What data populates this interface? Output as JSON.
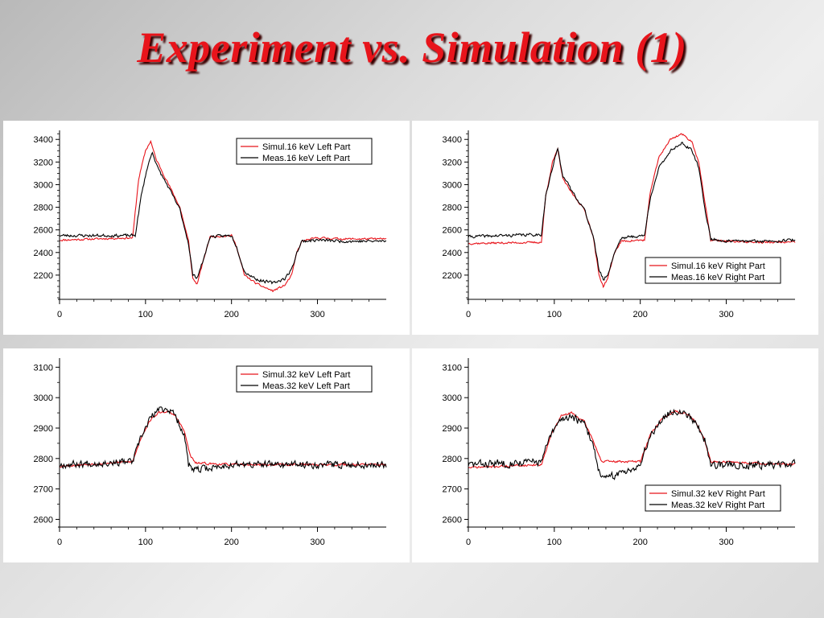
{
  "title": "Experiment vs. Simulation (1)",
  "colors": {
    "simul": "#e8141b",
    "meas": "#000000"
  },
  "chart_data": [
    {
      "type": "line",
      "xlim": [
        0,
        380
      ],
      "ylim": [
        2000,
        3480
      ],
      "xticks": [
        0,
        100,
        200,
        300
      ],
      "yticks": [
        2200,
        2400,
        2600,
        2800,
        3000,
        3200,
        3400
      ],
      "legend_position": "top-right",
      "series": [
        {
          "name": "Simul.16 keV Left Part",
          "color": "#e8141b",
          "noise": 12,
          "seed": 11,
          "x": [
            0,
            85,
            92,
            100,
            106,
            112,
            125,
            140,
            150,
            155,
            160,
            168,
            175,
            200,
            206,
            215,
            230,
            248,
            262,
            270,
            276,
            282,
            300,
            330,
            380
          ],
          "values": [
            2510,
            2530,
            3050,
            3300,
            3385,
            3230,
            3030,
            2800,
            2500,
            2170,
            2120,
            2350,
            2540,
            2550,
            2450,
            2200,
            2120,
            2060,
            2110,
            2200,
            2400,
            2500,
            2530,
            2520,
            2520
          ]
        },
        {
          "name": "Meas.16 keV Left Part",
          "color": "#000000",
          "noise": 18,
          "seed": 23,
          "x": [
            0,
            88,
            95,
            102,
            108,
            114,
            125,
            140,
            150,
            155,
            160,
            168,
            175,
            200,
            206,
            215,
            230,
            248,
            262,
            270,
            276,
            282,
            300,
            330,
            380
          ],
          "values": [
            2550,
            2550,
            2900,
            3150,
            3290,
            3150,
            3000,
            2780,
            2480,
            2200,
            2180,
            2350,
            2540,
            2550,
            2450,
            2230,
            2160,
            2130,
            2170,
            2250,
            2400,
            2500,
            2510,
            2500,
            2500
          ]
        }
      ]
    },
    {
      "type": "line",
      "xlim": [
        0,
        380
      ],
      "ylim": [
        2000,
        3480
      ],
      "xticks": [
        0,
        100,
        200,
        300
      ],
      "yticks": [
        2200,
        2400,
        2600,
        2800,
        3000,
        3200,
        3400
      ],
      "legend_position": "bottom-right",
      "series": [
        {
          "name": "Simul.16 keV Right Part",
          "color": "#e8141b",
          "noise": 12,
          "seed": 37,
          "x": [
            0,
            85,
            90,
            98,
            104,
            110,
            120,
            135,
            145,
            152,
            157,
            162,
            170,
            178,
            205,
            212,
            222,
            235,
            248,
            260,
            268,
            276,
            282,
            300,
            340,
            380
          ],
          "values": [
            2480,
            2490,
            2900,
            3200,
            3310,
            3050,
            2930,
            2780,
            2550,
            2200,
            2100,
            2170,
            2400,
            2500,
            2510,
            2950,
            3250,
            3400,
            3450,
            3380,
            3200,
            2800,
            2510,
            2500,
            2490,
            2490
          ]
        },
        {
          "name": "Meas.16 keV Right Part",
          "color": "#000000",
          "noise": 18,
          "seed": 41,
          "x": [
            0,
            85,
            90,
            98,
            104,
            110,
            120,
            135,
            145,
            152,
            157,
            162,
            170,
            178,
            205,
            212,
            222,
            235,
            248,
            260,
            268,
            276,
            282,
            300,
            340,
            380
          ],
          "values": [
            2540,
            2560,
            2900,
            3150,
            3320,
            3080,
            2950,
            2780,
            2550,
            2250,
            2160,
            2200,
            2400,
            2530,
            2550,
            2900,
            3150,
            3300,
            3370,
            3300,
            3150,
            2750,
            2520,
            2500,
            2500,
            2510
          ]
        }
      ]
    },
    {
      "type": "line",
      "xlim": [
        0,
        380
      ],
      "ylim": [
        2580,
        3130
      ],
      "xticks": [
        0,
        100,
        200,
        300
      ],
      "yticks": [
        2600,
        2700,
        2800,
        2900,
        3000,
        3100
      ],
      "legend_position": "top-right",
      "series": [
        {
          "name": "Simul.32 keV Left Part",
          "color": "#e8141b",
          "noise": 5,
          "seed": 53,
          "x": [
            0,
            85,
            95,
            105,
            115,
            125,
            135,
            145,
            152,
            158,
            200,
            380
          ],
          "values": [
            2775,
            2790,
            2870,
            2925,
            2950,
            2955,
            2940,
            2890,
            2810,
            2785,
            2780,
            2780
          ]
        },
        {
          "name": "Meas.32 keV Left Part",
          "color": "#000000",
          "noise": 16,
          "seed": 67,
          "x": [
            0,
            85,
            95,
            105,
            115,
            125,
            135,
            145,
            150,
            155,
            200,
            380
          ],
          "values": [
            2780,
            2790,
            2870,
            2930,
            2960,
            2965,
            2940,
            2880,
            2780,
            2760,
            2780,
            2780
          ]
        }
      ]
    },
    {
      "type": "line",
      "xlim": [
        0,
        380
      ],
      "ylim": [
        2580,
        3130
      ],
      "xticks": [
        0,
        100,
        200,
        300
      ],
      "yticks": [
        2600,
        2700,
        2800,
        2900,
        3000,
        3100
      ],
      "legend_position": "bottom-right",
      "series": [
        {
          "name": "Simul.32 keV Right Part",
          "color": "#e8141b",
          "noise": 5,
          "seed": 71,
          "x": [
            0,
            85,
            95,
            108,
            120,
            135,
            145,
            155,
            200,
            212,
            225,
            240,
            255,
            265,
            275,
            282,
            380
          ],
          "values": [
            2770,
            2780,
            2870,
            2940,
            2950,
            2920,
            2860,
            2790,
            2790,
            2880,
            2930,
            2955,
            2945,
            2920,
            2860,
            2790,
            2780
          ]
        },
        {
          "name": "Meas.32 keV Right Part",
          "color": "#000000",
          "noise": 18,
          "seed": 83,
          "x": [
            0,
            85,
            95,
            108,
            120,
            135,
            145,
            152,
            158,
            200,
            212,
            225,
            240,
            255,
            265,
            275,
            282,
            380
          ],
          "values": [
            2780,
            2790,
            2870,
            2930,
            2940,
            2910,
            2850,
            2760,
            2730,
            2780,
            2880,
            2930,
            2960,
            2945,
            2920,
            2860,
            2780,
            2780
          ]
        }
      ]
    }
  ]
}
